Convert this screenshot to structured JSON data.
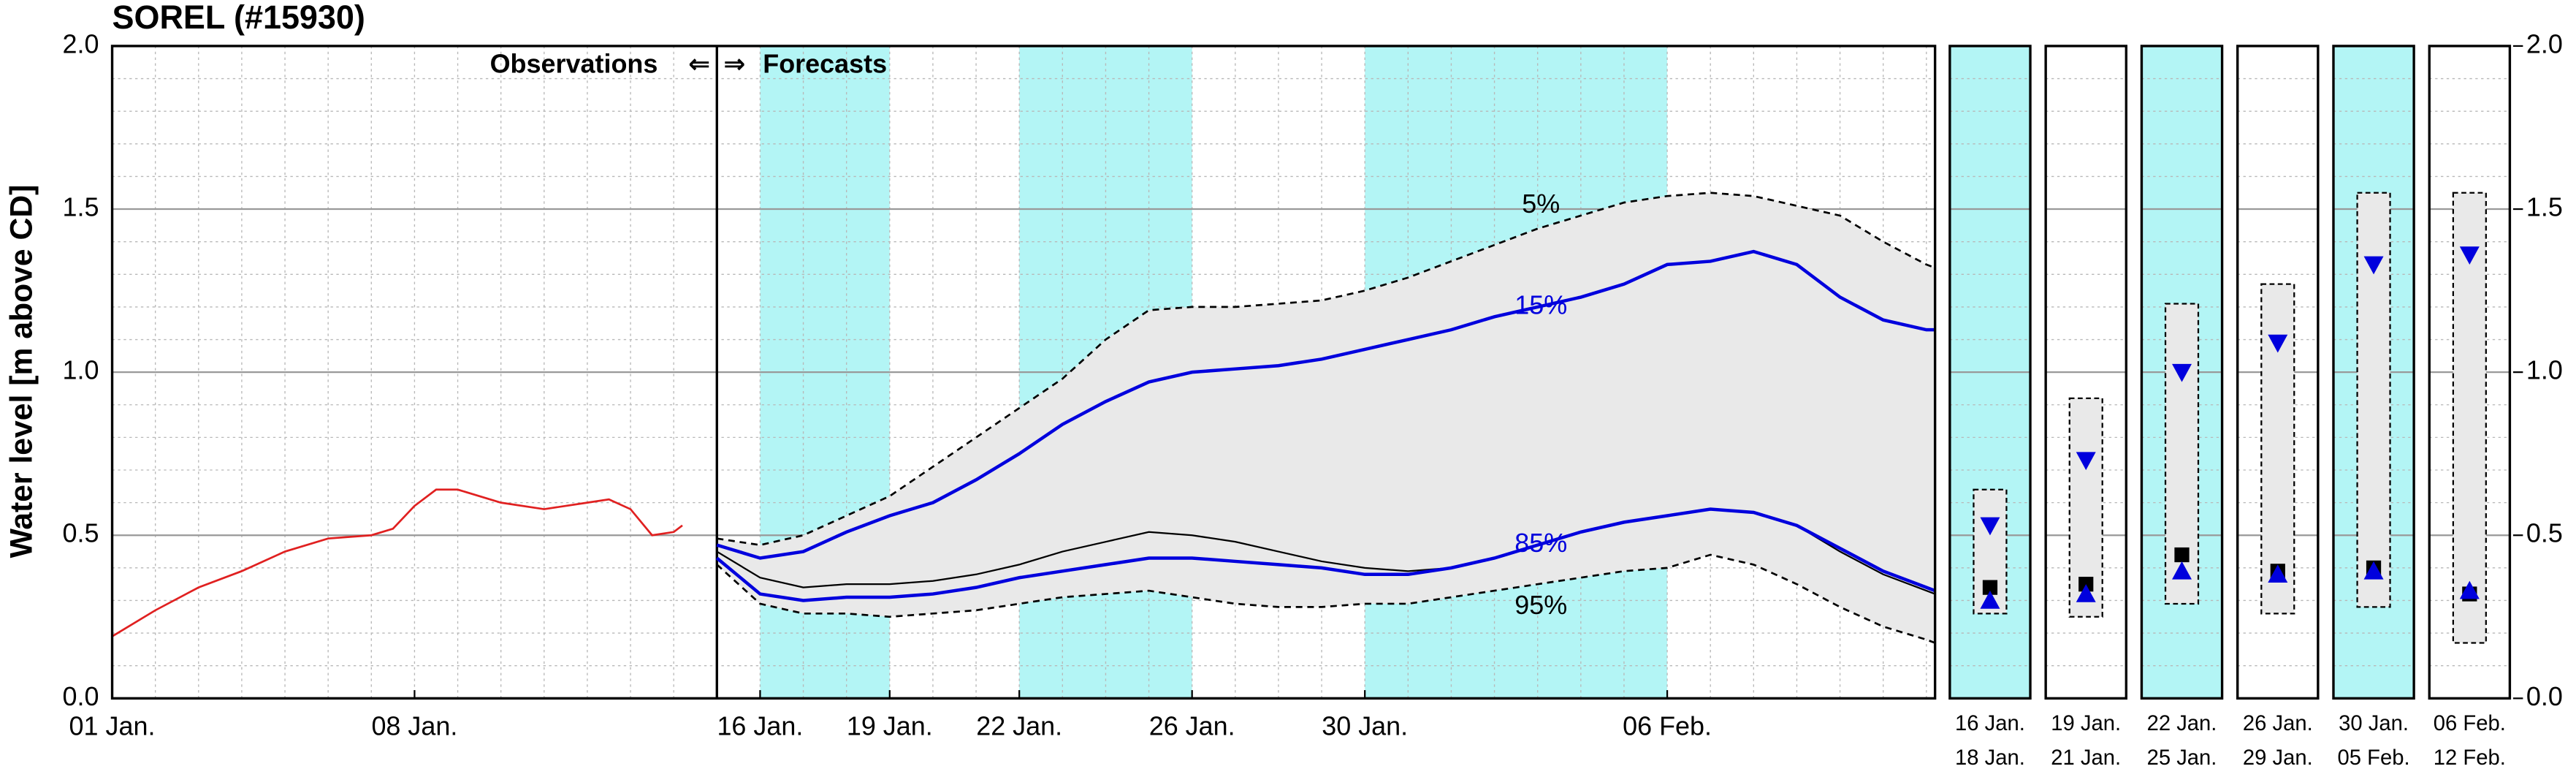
{
  "chart_data": [
    {
      "type": "line",
      "title": "SOREL (#15930)",
      "y_label": "Water level [m above CD]",
      "annotations": {
        "observations": "Observations",
        "left_arrow": "⇐",
        "right_arrow": "⇒",
        "forecasts": "Forecasts"
      },
      "divider_x": 14,
      "xlim": [
        0,
        42.2
      ],
      "xticks": [
        {
          "value": 0,
          "label": "01 Jan."
        },
        {
          "value": 7,
          "label": "08 Jan."
        },
        {
          "value": 15,
          "label": "16 Jan."
        },
        {
          "value": 18,
          "label": "19 Jan."
        },
        {
          "value": 21,
          "label": "22 Jan."
        },
        {
          "value": 25,
          "label": "26 Jan."
        },
        {
          "value": 29,
          "label": "30 Jan."
        },
        {
          "value": 36,
          "label": "06 Feb."
        }
      ],
      "ylim": [
        0,
        2
      ],
      "yticks": [
        {
          "value": 0,
          "label": "0.0"
        },
        {
          "value": 0.5,
          "label": "0.5"
        },
        {
          "value": 1,
          "label": "1.0"
        },
        {
          "value": 1.5,
          "label": "1.5"
        },
        {
          "value": 2,
          "label": "2.0"
        }
      ],
      "grid": true,
      "minor_grid": true,
      "shaded_periods": [
        [
          15,
          18
        ],
        [
          21,
          25
        ],
        [
          29,
          36
        ]
      ],
      "shade_color": "#b3f5f5",
      "band_color": "#e9e9e9",
      "series": [
        {
          "color": "#e02020",
          "style": "solid",
          "x": [
            0,
            1,
            2,
            3,
            4,
            5,
            6,
            6.5,
            7,
            7.5,
            8,
            9,
            10,
            11,
            11.5,
            12,
            12.5,
            13,
            13.2
          ],
          "values": [
            0.19,
            0.27,
            0.34,
            0.39,
            0.45,
            0.49,
            0.5,
            0.52,
            0.59,
            0.64,
            0.64,
            0.6,
            0.58,
            0.6,
            0.61,
            0.58,
            0.5,
            0.51,
            0.53
          ]
        },
        {
          "name": "5%",
          "color": "#000000",
          "style": "dashed",
          "x": [
            14,
            15,
            16,
            17,
            18,
            19,
            20,
            21,
            22,
            23,
            24,
            25,
            26,
            27,
            28,
            29,
            30,
            31,
            32,
            33,
            34,
            35,
            36,
            37,
            38,
            39,
            40,
            41,
            42,
            42.2
          ],
          "values": [
            0.49,
            0.47,
            0.5,
            0.56,
            0.62,
            0.71,
            0.8,
            0.89,
            0.98,
            1.1,
            1.19,
            1.2,
            1.2,
            1.21,
            1.22,
            1.25,
            1.29,
            1.34,
            1.39,
            1.44,
            1.48,
            1.52,
            1.54,
            1.55,
            1.54,
            1.51,
            1.48,
            1.4,
            1.33,
            1.32
          ]
        },
        {
          "name": "15%",
          "color": "#0000dd",
          "style": "solid",
          "x": [
            14,
            15,
            16,
            17,
            18,
            19,
            20,
            21,
            22,
            23,
            24,
            25,
            26,
            27,
            28,
            29,
            30,
            31,
            32,
            33,
            34,
            35,
            36,
            37,
            38,
            39,
            40,
            41,
            42,
            42.2
          ],
          "values": [
            0.47,
            0.43,
            0.45,
            0.51,
            0.56,
            0.6,
            0.67,
            0.75,
            0.84,
            0.91,
            0.97,
            1.0,
            1.01,
            1.02,
            1.04,
            1.07,
            1.1,
            1.13,
            1.17,
            1.2,
            1.23,
            1.27,
            1.33,
            1.34,
            1.37,
            1.33,
            1.23,
            1.16,
            1.13,
            1.13
          ]
        },
        {
          "color": "#000000",
          "style": "thin",
          "x": [
            14,
            15,
            16,
            17,
            18,
            19,
            20,
            21,
            22,
            23,
            24,
            25,
            26,
            27,
            28,
            29,
            30,
            31,
            32,
            33,
            34,
            35,
            36,
            37,
            38,
            39,
            40,
            41,
            42,
            42.2
          ],
          "values": [
            0.45,
            0.37,
            0.34,
            0.35,
            0.35,
            0.36,
            0.38,
            0.41,
            0.45,
            0.48,
            0.51,
            0.5,
            0.48,
            0.45,
            0.42,
            0.4,
            0.39,
            0.4,
            0.43,
            0.47,
            0.51,
            0.54,
            0.56,
            0.58,
            0.57,
            0.53,
            0.45,
            0.38,
            0.33,
            0.32
          ]
        },
        {
          "name": "85%",
          "color": "#0000dd",
          "style": "solid",
          "x": [
            14,
            15,
            16,
            17,
            18,
            19,
            20,
            21,
            22,
            23,
            24,
            25,
            26,
            27,
            28,
            29,
            30,
            31,
            32,
            33,
            34,
            35,
            36,
            37,
            38,
            39,
            40,
            41,
            42,
            42.2
          ],
          "values": [
            0.43,
            0.32,
            0.3,
            0.31,
            0.31,
            0.32,
            0.34,
            0.37,
            0.39,
            0.41,
            0.43,
            0.43,
            0.42,
            0.41,
            0.4,
            0.38,
            0.38,
            0.4,
            0.43,
            0.47,
            0.51,
            0.54,
            0.56,
            0.58,
            0.57,
            0.53,
            0.46,
            0.39,
            0.34,
            0.33
          ]
        },
        {
          "name": "95%",
          "color": "#000000",
          "style": "dashed",
          "x": [
            14,
            15,
            16,
            17,
            18,
            19,
            20,
            21,
            22,
            23,
            24,
            25,
            26,
            27,
            28,
            29,
            30,
            31,
            32,
            33,
            34,
            35,
            36,
            37,
            38,
            39,
            40,
            41,
            42,
            42.2
          ],
          "values": [
            0.41,
            0.29,
            0.26,
            0.26,
            0.25,
            0.26,
            0.27,
            0.29,
            0.31,
            0.32,
            0.33,
            0.31,
            0.29,
            0.28,
            0.28,
            0.29,
            0.29,
            0.31,
            0.33,
            0.35,
            0.37,
            0.39,
            0.4,
            0.44,
            0.41,
            0.35,
            0.28,
            0.22,
            0.18,
            0.17
          ]
        }
      ]
    },
    {
      "type": "range",
      "categories": [
        {
          "from": "16 Jan.",
          "to": "18 Jan."
        },
        {
          "from": "19 Jan.",
          "to": "21 Jan."
        },
        {
          "from": "22 Jan.",
          "to": "25 Jan."
        },
        {
          "from": "26 Jan.",
          "to": "29 Jan."
        },
        {
          "from": "30 Jan.",
          "to": "05 Feb."
        },
        {
          "from": "06 Feb.",
          "to": "12 Feb."
        }
      ],
      "highlight": [
        true,
        false,
        true,
        false,
        true,
        false
      ],
      "highlight_color": "#b3f5f5",
      "ylim": [
        0,
        2
      ],
      "yticks": [
        {
          "value": 0,
          "label": "0.0"
        },
        {
          "value": 0.5,
          "label": "0.5"
        },
        {
          "value": 1,
          "label": "1.0"
        },
        {
          "value": 1.5,
          "label": "1.5"
        },
        {
          "value": 2,
          "label": "2.0"
        }
      ],
      "grid": true,
      "minor_grid": true,
      "box_color": "#e9e9e9",
      "marker_color": "#0000dd",
      "square_color": "#000000",
      "box_top": [
        0.64,
        0.92,
        1.21,
        1.27,
        1.55,
        1.55
      ],
      "box_bottom": [
        0.26,
        0.25,
        0.29,
        0.26,
        0.28,
        0.17
      ],
      "tri_down": [
        0.53,
        0.73,
        1.0,
        1.09,
        1.33,
        1.36
      ],
      "square": [
        0.34,
        0.35,
        0.44,
        0.39,
        0.4,
        0.32
      ],
      "tri_up": [
        0.3,
        0.32,
        0.39,
        0.38,
        0.39,
        0.33
      ]
    }
  ]
}
